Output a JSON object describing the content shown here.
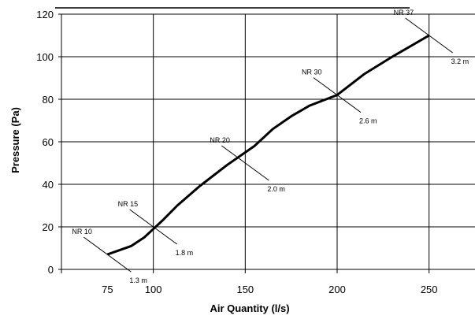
{
  "chart_data": {
    "type": "line",
    "title": "",
    "xlabel": "Air Quantity (l/s)",
    "ylabel": "Pressure (Pa)",
    "xlim": [
      50,
      275
    ],
    "ylim": [
      0,
      120
    ],
    "x_ticks": [
      75,
      100,
      150,
      200,
      250
    ],
    "x_gridlines": [
      50,
      100,
      150,
      200,
      250
    ],
    "y_ticks": [
      0,
      20,
      40,
      60,
      80,
      100,
      120
    ],
    "grid": true,
    "x_tick_labels": [
      "75",
      "100",
      "150",
      "200",
      "250"
    ],
    "y_tick_labels": [
      "0",
      "20",
      "40",
      "60",
      "80",
      "100",
      "120"
    ],
    "series": [
      {
        "x": [
          75,
          88,
          95,
          100,
          105,
          113,
          125,
          140,
          155,
          165,
          175,
          185,
          200,
          215,
          230,
          250
        ],
        "y": [
          7,
          11,
          15,
          19,
          23,
          30,
          39,
          49,
          58,
          66,
          72,
          77,
          82,
          92,
          100,
          110
        ]
      }
    ],
    "annotations": [
      {
        "nr": "NR 10",
        "distance": "1.3 m",
        "x": 75,
        "y": 7
      },
      {
        "nr": "NR 15",
        "distance": "1.8 m",
        "x": 100,
        "y": 20
      },
      {
        "nr": "NR 20",
        "distance": "2.0 m",
        "x": 150,
        "y": 50
      },
      {
        "nr": "NR 30",
        "distance": "2.6 m",
        "x": 200,
        "y": 82
      },
      {
        "nr": "NR 37",
        "distance": "3.2 m",
        "x": 250,
        "y": 110
      }
    ]
  }
}
